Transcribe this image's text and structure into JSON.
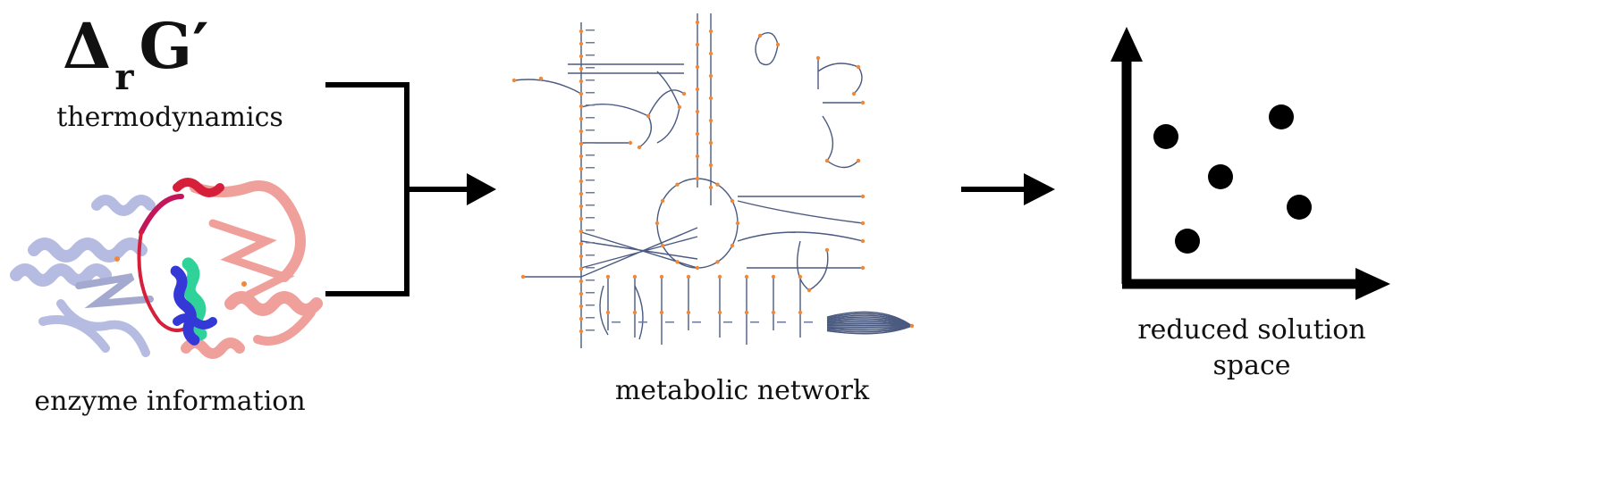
{
  "formula": {
    "symbol": "Δ",
    "subscript": "r",
    "main": "G′"
  },
  "labels": {
    "thermo": "thermodynamics",
    "enzyme": "enzyme information",
    "network": "metabolic network",
    "reduced_line1": "reduced solution",
    "reduced_line2": "space"
  },
  "colors": {
    "ink": "#111111",
    "protein_blue": "#7b86c9",
    "protein_red": "#e5534b",
    "helix_green": "#2fd39a",
    "helix_blue": "#3338d6",
    "network_edge": "#4a5a80",
    "network_node": "#f0883a"
  },
  "icons": {
    "protein": "protein-ribbon-structure",
    "network": "metabolic-network-map",
    "plot": "scatter-plot-axes"
  }
}
